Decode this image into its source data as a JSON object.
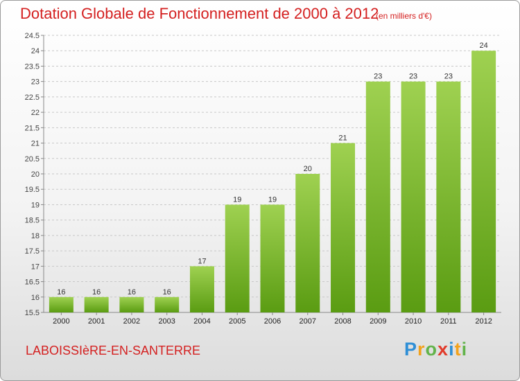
{
  "header": {
    "title": "Dotation Globale de Fonctionnement de 2000 à 2012",
    "subtitle": "(en milliers d'€)"
  },
  "footer": {
    "commune": "LABOISSIèRE-EN-SANTERRE",
    "logo": [
      "P",
      "r",
      "o",
      "x",
      "i",
      "t",
      "i"
    ]
  },
  "colors": {
    "title": "#d42020",
    "bar_top": "#9fd151",
    "bar_bottom": "#5a9c12",
    "grid": "#c8c8c8"
  },
  "chart_data": {
    "type": "bar",
    "categories": [
      "2000",
      "2001",
      "2002",
      "2003",
      "2004",
      "2005",
      "2006",
      "2007",
      "2008",
      "2009",
      "2010",
      "2011",
      "2012"
    ],
    "values": [
      16,
      16,
      16,
      16,
      17,
      19,
      19,
      20,
      21,
      23,
      23,
      23,
      24
    ],
    "data_labels": [
      "16",
      "16",
      "16",
      "16",
      "17",
      "19",
      "19",
      "20",
      "21",
      "23",
      "23",
      "23",
      "24"
    ],
    "title": "Dotation Globale de Fonctionnement de 2000 à 2012",
    "ylim": [
      15.5,
      24.5
    ],
    "yticks": [
      "15.5",
      "16",
      "16.5",
      "17",
      "17.5",
      "18",
      "18.5",
      "19",
      "19.5",
      "20",
      "20.5",
      "21",
      "21.5",
      "22",
      "22.5",
      "23",
      "23.5",
      "24",
      "24.5"
    ],
    "grid": "horizontal dashed"
  }
}
